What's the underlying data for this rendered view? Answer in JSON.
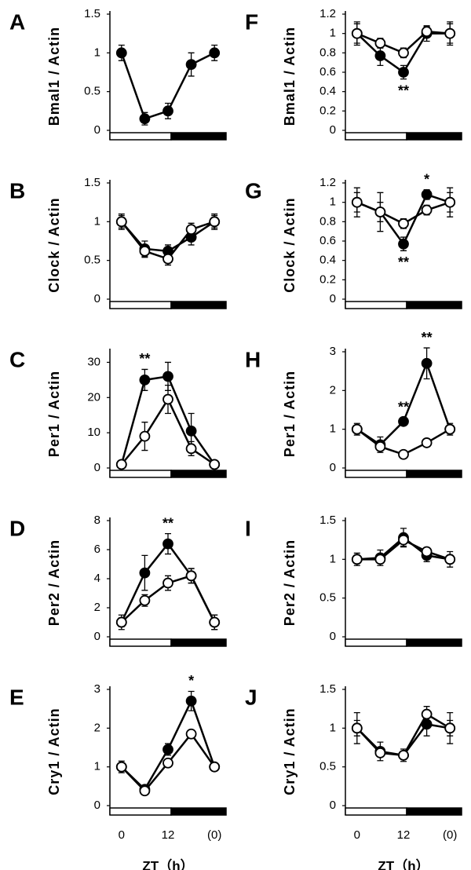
{
  "chart_data": [
    {
      "type": "line",
      "panel": "A",
      "ylabel": "Bmal1 / Actin",
      "x": [
        0,
        6,
        12,
        18,
        24
      ],
      "xlim": [
        -3,
        27
      ],
      "ylim": [
        0,
        1.5
      ],
      "yticks": [
        0,
        0.5,
        1,
        1.5
      ],
      "series": [
        {
          "color": "#000000",
          "marker_fill": "#000000",
          "values": [
            1.0,
            0.15,
            0.25,
            0.85,
            1.0
          ],
          "errors": [
            0.1,
            0.08,
            0.1,
            0.15,
            0.1
          ]
        }
      ]
    },
    {
      "type": "line",
      "panel": "B",
      "ylabel": "Clock / Actin",
      "x": [
        0,
        6,
        12,
        18,
        24
      ],
      "xlim": [
        -3,
        27
      ],
      "ylim": [
        0,
        1.5
      ],
      "yticks": [
        0,
        0.5,
        1,
        1.5
      ],
      "series": [
        {
          "color": "#000000",
          "marker_fill": "#000000",
          "values": [
            1.0,
            0.65,
            0.62,
            0.8,
            1.0
          ],
          "errors": [
            0.1,
            0.1,
            0.08,
            0.1,
            0.1
          ]
        },
        {
          "color": "#000000",
          "marker_fill": "#ffffff",
          "values": [
            1.0,
            0.62,
            0.52,
            0.9,
            1.0
          ],
          "errors": [
            0.08,
            0.08,
            0.08,
            0.08,
            0.08
          ]
        }
      ]
    },
    {
      "type": "line",
      "panel": "C",
      "ylabel": "Per1 / Actin",
      "x": [
        0,
        6,
        12,
        18,
        24
      ],
      "xlim": [
        -3,
        27
      ],
      "ylim": [
        0,
        33
      ],
      "yticks": [
        0,
        10,
        20,
        30
      ],
      "series": [
        {
          "color": "#000000",
          "marker_fill": "#000000",
          "values": [
            1,
            25,
            26,
            10.5,
            1
          ],
          "errors": [
            0.5,
            3,
            4,
            5,
            0.5
          ]
        },
        {
          "color": "#000000",
          "marker_fill": "#ffffff",
          "values": [
            1,
            9,
            19.5,
            5.5,
            1
          ],
          "errors": [
            0.5,
            4,
            4,
            2,
            0.5
          ]
        }
      ],
      "annotations": [
        {
          "text": "**",
          "x": 6
        }
      ]
    },
    {
      "type": "line",
      "panel": "D",
      "ylabel": "Per2 / Actin",
      "x": [
        0,
        6,
        12,
        18,
        24
      ],
      "xlim": [
        -3,
        27
      ],
      "ylim": [
        0,
        8
      ],
      "yticks": [
        0,
        2,
        4,
        6,
        8
      ],
      "series": [
        {
          "color": "#000000",
          "marker_fill": "#000000",
          "values": [
            1,
            4.4,
            6.4,
            4.2,
            1
          ],
          "errors": [
            0.5,
            1.2,
            0.7,
            0.5,
            0.5
          ]
        },
        {
          "color": "#000000",
          "marker_fill": "#ffffff",
          "values": [
            1,
            2.5,
            3.7,
            4.2,
            1
          ],
          "errors": [
            0.3,
            0.4,
            0.5,
            0.5,
            0.5
          ]
        }
      ],
      "annotations": [
        {
          "text": "**",
          "x": 12
        }
      ]
    },
    {
      "type": "line",
      "panel": "E",
      "ylabel": "Cry1 / Actin",
      "x": [
        0,
        6,
        12,
        18,
        24
      ],
      "xlim": [
        -3,
        27
      ],
      "ylim": [
        0,
        3
      ],
      "yticks": [
        0,
        1,
        2,
        3
      ],
      "xticks": [
        0,
        12,
        {
          "value": 24,
          "label": "(0)"
        }
      ],
      "xlabel": "ZT（h）",
      "series": [
        {
          "color": "#000000",
          "marker_fill": "#000000",
          "values": [
            1,
            0.42,
            1.45,
            2.7,
            1
          ],
          "errors": [
            0.15,
            0.1,
            0.15,
            0.25,
            0.1
          ]
        },
        {
          "color": "#000000",
          "marker_fill": "#ffffff",
          "values": [
            1,
            0.38,
            1.1,
            1.85,
            1
          ],
          "errors": [
            0.1,
            0.1,
            0.1,
            0.1,
            0.1
          ]
        }
      ],
      "annotations": [
        {
          "text": "*",
          "x": 18
        }
      ]
    },
    {
      "type": "line",
      "panel": "F",
      "ylabel": "Bmal1 / Actin",
      "x": [
        0,
        6,
        12,
        18,
        24
      ],
      "xlim": [
        -3,
        27
      ],
      "ylim": [
        0,
        1.2
      ],
      "yticks": [
        0,
        0.2,
        0.4,
        0.6,
        0.8,
        1,
        1.2
      ],
      "series": [
        {
          "color": "#000000",
          "marker_fill": "#000000",
          "values": [
            1,
            0.77,
            0.6,
            1.0,
            1.0
          ],
          "errors": [
            0.12,
            0.1,
            0.07,
            0.08,
            0.12
          ]
        },
        {
          "color": "#000000",
          "marker_fill": "#ffffff",
          "values": [
            1,
            0.9,
            0.8,
            1.02,
            1.0
          ],
          "errors": [
            0.1,
            0.05,
            0.05,
            0.05,
            0.1
          ]
        }
      ],
      "annotations": [
        {
          "text": "**",
          "x": 12
        }
      ]
    },
    {
      "type": "line",
      "panel": "G",
      "ylabel": "Clock / Actin",
      "x": [
        0,
        6,
        12,
        18,
        24
      ],
      "xlim": [
        -3,
        27
      ],
      "ylim": [
        0,
        1.2
      ],
      "yticks": [
        0,
        0.2,
        0.4,
        0.6,
        0.8,
        1,
        1.2
      ],
      "series": [
        {
          "color": "#000000",
          "marker_fill": "#000000",
          "values": [
            1,
            0.9,
            0.57,
            1.08,
            1.0
          ],
          "errors": [
            0.15,
            0.2,
            0.07,
            0.05,
            0.15
          ]
        },
        {
          "color": "#000000",
          "marker_fill": "#ffffff",
          "values": [
            1,
            0.9,
            0.78,
            0.92,
            1.0
          ],
          "errors": [
            0.1,
            0.1,
            0.05,
            0.05,
            0.1
          ]
        }
      ],
      "annotations": [
        {
          "text": "**",
          "x": 12
        },
        {
          "text": "*",
          "x": 18
        }
      ]
    },
    {
      "type": "line",
      "panel": "H",
      "ylabel": "Per1 / Actin",
      "x": [
        0,
        6,
        12,
        18,
        24
      ],
      "xlim": [
        -3,
        27
      ],
      "ylim": [
        0,
        3
      ],
      "yticks": [
        0,
        1,
        2,
        3
      ],
      "series": [
        {
          "color": "#000000",
          "marker_fill": "#000000",
          "values": [
            1,
            0.6,
            1.2,
            2.7,
            1
          ],
          "errors": [
            0.15,
            0.2,
            0.1,
            0.4,
            0.15
          ]
        },
        {
          "color": "#000000",
          "marker_fill": "#ffffff",
          "values": [
            1,
            0.55,
            0.35,
            0.65,
            1
          ],
          "errors": [
            0.1,
            0.1,
            0.05,
            0.05,
            0.1
          ]
        }
      ],
      "annotations": [
        {
          "text": "**",
          "x": 12
        },
        {
          "text": "**",
          "x": 18
        }
      ]
    },
    {
      "type": "line",
      "panel": "I",
      "ylabel": "Per2 / Actin",
      "x": [
        0,
        6,
        12,
        18,
        24
      ],
      "xlim": [
        -3,
        27
      ],
      "ylim": [
        0,
        1.5
      ],
      "yticks": [
        0,
        0.5,
        1,
        1.5
      ],
      "series": [
        {
          "color": "#000000",
          "marker_fill": "#000000",
          "values": [
            1,
            1.02,
            1.28,
            1.05,
            1.0
          ],
          "errors": [
            0.08,
            0.1,
            0.12,
            0.08,
            0.1
          ]
        },
        {
          "color": "#000000",
          "marker_fill": "#ffffff",
          "values": [
            1,
            1.0,
            1.25,
            1.1,
            1.0
          ],
          "errors": [
            0.05,
            0.05,
            0.08,
            0.05,
            0.05
          ]
        }
      ]
    },
    {
      "type": "line",
      "panel": "J",
      "ylabel": "Cry1 / Actin",
      "x": [
        0,
        6,
        12,
        18,
        24
      ],
      "xlim": [
        -3,
        27
      ],
      "ylim": [
        0,
        1.5
      ],
      "yticks": [
        0,
        0.5,
        1,
        1.5
      ],
      "xticks": [
        0,
        12,
        {
          "value": 24,
          "label": "(0)"
        }
      ],
      "xlabel": "ZT（h）",
      "series": [
        {
          "color": "#000000",
          "marker_fill": "#000000",
          "values": [
            1,
            0.7,
            0.65,
            1.05,
            1.0
          ],
          "errors": [
            0.2,
            0.12,
            0.08,
            0.15,
            0.2
          ]
        },
        {
          "color": "#000000",
          "marker_fill": "#ffffff",
          "values": [
            1,
            0.68,
            0.65,
            1.18,
            1.0
          ],
          "errors": [
            0.1,
            0.05,
            0.05,
            0.1,
            0.1
          ]
        }
      ]
    }
  ]
}
